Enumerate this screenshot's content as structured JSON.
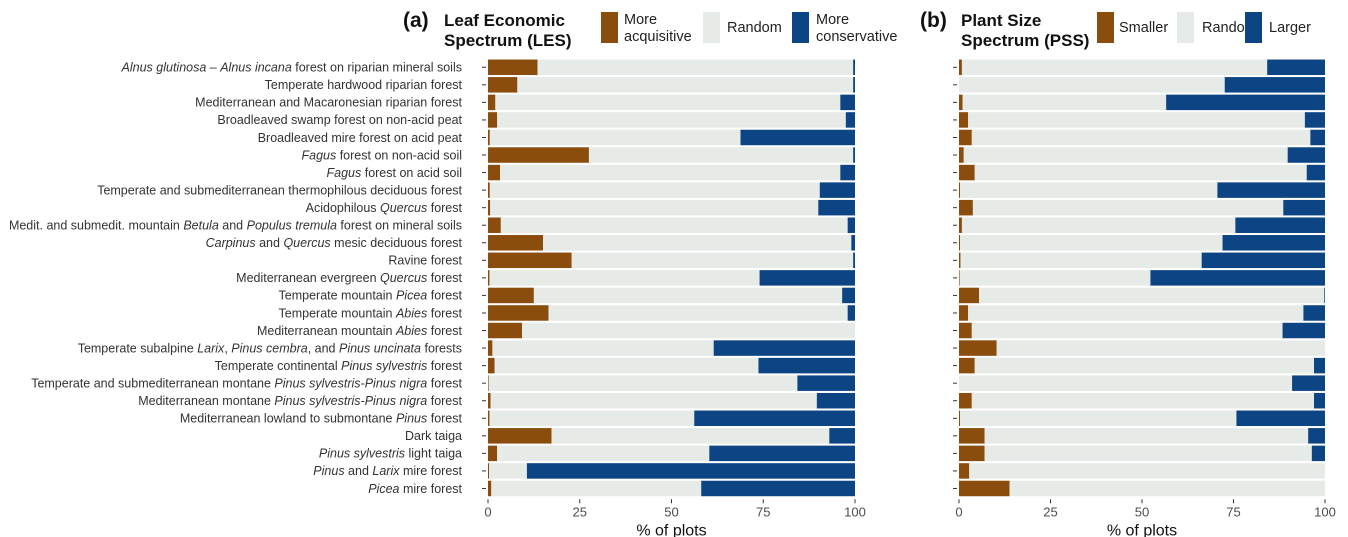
{
  "colors": {
    "acquisitive": "#8b4d0e",
    "random": "#e7ebe8",
    "conservative": "#0d4584",
    "tick": "#333333"
  },
  "categories": [
    [
      {
        "t": "Alnus glutinosa",
        "i": true
      },
      {
        "t": " – ",
        "i": false
      },
      {
        "t": "Alnus incana",
        "i": true
      },
      {
        "t": " forest on riparian mineral soils",
        "i": false
      }
    ],
    [
      {
        "t": "Temperate hardwood riparian forest",
        "i": false
      }
    ],
    [
      {
        "t": "Mediterranean and Macaronesian riparian forest",
        "i": false
      }
    ],
    [
      {
        "t": "Broadleaved swamp forest on non-acid peat",
        "i": false
      }
    ],
    [
      {
        "t": "Broadleaved mire forest on acid peat",
        "i": false
      }
    ],
    [
      {
        "t": "Fagus",
        "i": true
      },
      {
        "t": " forest on non-acid soil",
        "i": false
      }
    ],
    [
      {
        "t": "Fagus",
        "i": true
      },
      {
        "t": " forest on acid soil",
        "i": false
      }
    ],
    [
      {
        "t": "Temperate and submediterranean thermophilous deciduous forest",
        "i": false
      }
    ],
    [
      {
        "t": "Acidophilous ",
        "i": false
      },
      {
        "t": "Quercus",
        "i": true
      },
      {
        "t": " forest",
        "i": false
      }
    ],
    [
      {
        "t": "Medit. and submedit. mountain ",
        "i": false
      },
      {
        "t": "Betula",
        "i": true
      },
      {
        "t": " and ",
        "i": false
      },
      {
        "t": "Populus tremula",
        "i": true
      },
      {
        "t": " forest on mineral soils",
        "i": false
      }
    ],
    [
      {
        "t": "Carpinus",
        "i": true
      },
      {
        "t": " and ",
        "i": false
      },
      {
        "t": "Quercus",
        "i": true
      },
      {
        "t": " mesic deciduous forest",
        "i": false
      }
    ],
    [
      {
        "t": "Ravine forest",
        "i": false
      }
    ],
    [
      {
        "t": "Mediterranean evergreen ",
        "i": false
      },
      {
        "t": "Quercus",
        "i": true
      },
      {
        "t": " forest",
        "i": false
      }
    ],
    [
      {
        "t": "Temperate mountain ",
        "i": false
      },
      {
        "t": "Picea",
        "i": true
      },
      {
        "t": " forest",
        "i": false
      }
    ],
    [
      {
        "t": "Temperate mountain ",
        "i": false
      },
      {
        "t": "Abies",
        "i": true
      },
      {
        "t": " forest",
        "i": false
      }
    ],
    [
      {
        "t": "Mediterranean mountain ",
        "i": false
      },
      {
        "t": "Abies",
        "i": true
      },
      {
        "t": " forest",
        "i": false
      }
    ],
    [
      {
        "t": "Temperate subalpine ",
        "i": false
      },
      {
        "t": "Larix",
        "i": true
      },
      {
        "t": ", ",
        "i": false
      },
      {
        "t": "Pinus cembra",
        "i": true
      },
      {
        "t": ", and ",
        "i": false
      },
      {
        "t": "Pinus uncinata",
        "i": true
      },
      {
        "t": " forests",
        "i": false
      }
    ],
    [
      {
        "t": "Temperate continental ",
        "i": false
      },
      {
        "t": "Pinus sylvestris",
        "i": true
      },
      {
        "t": " forest",
        "i": false
      }
    ],
    [
      {
        "t": "Temperate and submediterranean montane ",
        "i": false
      },
      {
        "t": "Pinus sylvestris-Pinus nigra",
        "i": true
      },
      {
        "t": " forest",
        "i": false
      }
    ],
    [
      {
        "t": "Mediterranean montane ",
        "i": false
      },
      {
        "t": "Pinus sylvestris-Pinus nigra",
        "i": true
      },
      {
        "t": " forest",
        "i": false
      }
    ],
    [
      {
        "t": "Mediterranean lowland to submontane ",
        "i": false
      },
      {
        "t": "Pinus",
        "i": true
      },
      {
        "t": " forest",
        "i": false
      }
    ],
    [
      {
        "t": "Dark taiga",
        "i": false
      }
    ],
    [
      {
        "t": "Pinus sylvestris",
        "i": true
      },
      {
        "t": " light taiga",
        "i": false
      }
    ],
    [
      {
        "t": "Pinus",
        "i": true
      },
      {
        "t": " and ",
        "i": false
      },
      {
        "t": "Larix",
        "i": true
      },
      {
        "t": " mire forest",
        "i": false
      }
    ],
    [
      {
        "t": "Picea",
        "i": true
      },
      {
        "t": " mire forest",
        "i": false
      }
    ]
  ],
  "chart_data": [
    {
      "type": "bar",
      "orientation": "horizontal",
      "stacked": true,
      "panel": "(a)",
      "title_lines": [
        "Leaf Economic",
        "Spectrum (LES)"
      ],
      "xlabel": "% of plots",
      "xlim": [
        0,
        100
      ],
      "xticks": [
        0,
        25,
        50,
        75,
        100
      ],
      "legend": [
        {
          "key": "low",
          "lines": [
            "More",
            "acquisitive"
          ],
          "color": "#8b4d0e"
        },
        {
          "key": "mid",
          "lines": [
            "Random"
          ],
          "color": "#e7ebe8"
        },
        {
          "key": "high",
          "lines": [
            "More",
            "conservative"
          ],
          "color": "#0d4584"
        }
      ],
      "series": [
        {
          "name": "More acquisitive",
          "values": [
            13.5,
            8,
            2,
            2.5,
            0.5,
            27.5,
            3.3,
            0.5,
            0.6,
            3.5,
            15,
            22.8,
            0.4,
            12.5,
            16.5,
            9.3,
            1.2,
            1.8,
            0.2,
            0.7,
            0.4,
            17.3,
            2.5,
            0.3,
            0.9
          ]
        },
        {
          "name": "Random",
          "values": [
            86,
            91.5,
            94,
            95,
            68.3,
            72,
            92.7,
            89.9,
            89.4,
            94.5,
            84,
            76.7,
            73.6,
            84,
            81.5,
            90.7,
            60.3,
            71.9,
            84.1,
            88.9,
            55.8,
            75.7,
            57.8,
            10.3,
            57.2
          ]
        },
        {
          "name": "More conservative",
          "values": [
            0.5,
            0.5,
            4,
            2.5,
            31.2,
            0.5,
            4,
            9.6,
            10,
            2,
            1,
            0.5,
            26,
            3.5,
            2,
            0,
            38.5,
            26.3,
            15.7,
            10.4,
            43.8,
            7,
            39.7,
            89.4,
            41.9
          ]
        }
      ]
    },
    {
      "type": "bar",
      "orientation": "horizontal",
      "stacked": true,
      "panel": "(b)",
      "title_lines": [
        "Plant Size",
        "Spectrum (PSS)"
      ],
      "xlabel": "% of plots",
      "xlim": [
        0,
        100
      ],
      "xticks": [
        0,
        25,
        50,
        75,
        100
      ],
      "legend": [
        {
          "key": "low",
          "lines": [
            "Smaller"
          ],
          "color": "#8b4d0e"
        },
        {
          "key": "mid",
          "lines": [
            "Random"
          ],
          "color": "#e7ebe8"
        },
        {
          "key": "high",
          "lines": [
            "Larger"
          ],
          "color": "#0d4584"
        }
      ],
      "series": [
        {
          "name": "Smaller",
          "values": [
            0.8,
            0,
            1,
            2.5,
            3.5,
            1.3,
            4.3,
            0.3,
            3.8,
            0.8,
            0.3,
            0.4,
            0.2,
            5.5,
            2.5,
            3.5,
            10.3,
            4.3,
            0,
            3.5,
            0.3,
            7,
            7,
            2.8,
            13.8
          ]
        },
        {
          "name": "Random",
          "values": [
            83.4,
            72.6,
            55.6,
            92,
            92.5,
            88.5,
            90.7,
            70.3,
            84.8,
            74.7,
            71.7,
            65.9,
            52.1,
            94.3,
            91.6,
            84.9,
            89.7,
            92.7,
            91,
            93.5,
            75.5,
            88.4,
            89.4,
            97.2,
            86.2
          ]
        },
        {
          "name": "Larger",
          "values": [
            15.8,
            27.4,
            43.4,
            5.5,
            4,
            10.2,
            5,
            29.4,
            11.4,
            24.5,
            28,
            33.7,
            47.7,
            0.2,
            5.9,
            11.6,
            0,
            3,
            9,
            3,
            24.2,
            4.6,
            3.6,
            0,
            0
          ]
        }
      ]
    }
  ]
}
